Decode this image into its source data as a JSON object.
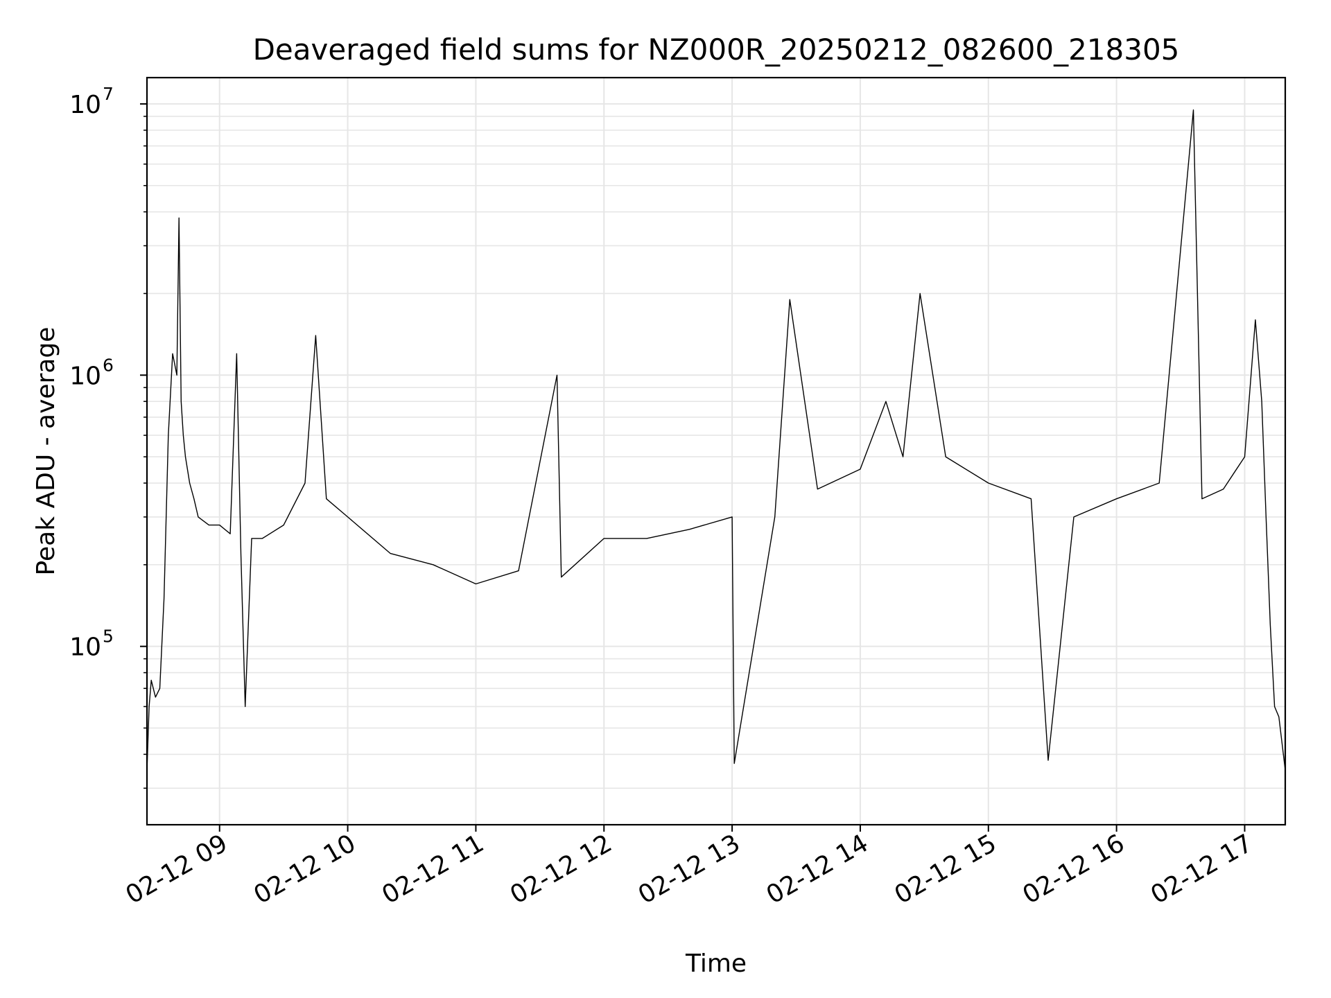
{
  "chart_data": {
    "type": "line",
    "title": "Deaveraged field sums for NZ000R_20250212_082600_218305",
    "xlabel": "Time",
    "ylabel": "Peak ADU - average",
    "yscale": "log",
    "ylim": [
      22000,
      12500000
    ],
    "xlim": [
      "2025-02-12 08:26",
      "2025-02-12 17:19"
    ],
    "grid": true,
    "line_color": "#000000",
    "x_ticks": [
      "02-12 09",
      "02-12 10",
      "02-12 11",
      "02-12 12",
      "02-12 13",
      "02-12 14",
      "02-12 15",
      "02-12 16",
      "02-12 17"
    ],
    "x_tick_times": [
      "2025-02-12 09:00",
      "2025-02-12 10:00",
      "2025-02-12 11:00",
      "2025-02-12 12:00",
      "2025-02-12 13:00",
      "2025-02-12 14:00",
      "2025-02-12 15:00",
      "2025-02-12 16:00",
      "2025-02-12 17:00"
    ],
    "y_ticks": [
      {
        "value": 100000,
        "base": "10",
        "exp": "5"
      },
      {
        "value": 1000000,
        "base": "10",
        "exp": "6"
      },
      {
        "value": 10000000,
        "base": "10",
        "exp": "7"
      }
    ],
    "series": [
      {
        "x": [
          "2025-02-12 08:26",
          "2025-02-12 08:27",
          "2025-02-12 08:28",
          "2025-02-12 08:30",
          "2025-02-12 08:32",
          "2025-02-12 08:34",
          "2025-02-12 08:36",
          "2025-02-12 08:38",
          "2025-02-12 08:40",
          "2025-02-12 08:41",
          "2025-02-12 08:42",
          "2025-02-12 08:43",
          "2025-02-12 08:44",
          "2025-02-12 08:46",
          "2025-02-12 08:48",
          "2025-02-12 08:50",
          "2025-02-12 08:55",
          "2025-02-12 09:00",
          "2025-02-12 09:05",
          "2025-02-12 09:08",
          "2025-02-12 09:10",
          "2025-02-12 09:12",
          "2025-02-12 09:15",
          "2025-02-12 09:20",
          "2025-02-12 09:30",
          "2025-02-12 09:40",
          "2025-02-12 09:45",
          "2025-02-12 09:50",
          "2025-02-12 10:00",
          "2025-02-12 10:20",
          "2025-02-12 10:40",
          "2025-02-12 11:00",
          "2025-02-12 11:20",
          "2025-02-12 11:38",
          "2025-02-12 11:40",
          "2025-02-12 12:00",
          "2025-02-12 12:20",
          "2025-02-12 12:40",
          "2025-02-12 13:00",
          "2025-02-12 13:01",
          "2025-02-12 13:20",
          "2025-02-12 13:27",
          "2025-02-12 13:40",
          "2025-02-12 14:00",
          "2025-02-12 14:12",
          "2025-02-12 14:20",
          "2025-02-12 14:28",
          "2025-02-12 14:40",
          "2025-02-12 15:00",
          "2025-02-12 15:20",
          "2025-02-12 15:28",
          "2025-02-12 15:40",
          "2025-02-12 16:00",
          "2025-02-12 16:20",
          "2025-02-12 16:36",
          "2025-02-12 16:40",
          "2025-02-12 16:50",
          "2025-02-12 17:00",
          "2025-02-12 17:05",
          "2025-02-12 17:08",
          "2025-02-12 17:10",
          "2025-02-12 17:12",
          "2025-02-12 17:14",
          "2025-02-12 17:16",
          "2025-02-12 17:19"
        ],
        "y": [
          35000,
          60000,
          75000,
          65000,
          70000,
          150000,
          600000,
          1200000,
          1000000,
          3800000,
          800000,
          600000,
          500000,
          400000,
          350000,
          300000,
          280000,
          280000,
          260000,
          1200000,
          220000,
          60000,
          250000,
          250000,
          280000,
          400000,
          1400000,
          350000,
          300000,
          220000,
          200000,
          170000,
          190000,
          1000000,
          180000,
          250000,
          250000,
          270000,
          300000,
          37000,
          300000,
          1900000,
          380000,
          450000,
          800000,
          500000,
          2000000,
          500000,
          400000,
          350000,
          38000,
          300000,
          350000,
          400000,
          9500000,
          350000,
          380000,
          500000,
          1600000,
          800000,
          300000,
          120000,
          60000,
          55000,
          35000
        ]
      }
    ]
  }
}
